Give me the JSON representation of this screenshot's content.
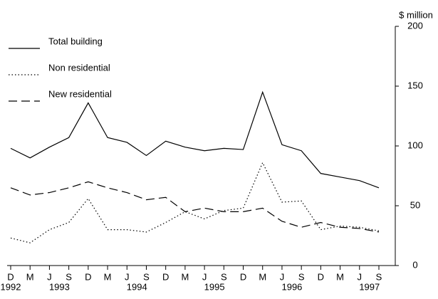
{
  "chart_data": {
    "type": "line",
    "y_axis_label": "$ million",
    "categories": [
      "D",
      "M",
      "J",
      "S",
      "D",
      "M",
      "J",
      "S",
      "D",
      "M",
      "J",
      "S",
      "D",
      "M",
      "J",
      "S",
      "D",
      "M",
      "J",
      "S"
    ],
    "year_labels": [
      "1992",
      null,
      "1993",
      null,
      null,
      null,
      "1994",
      null,
      null,
      null,
      "1995",
      null,
      null,
      null,
      "1996",
      null,
      null,
      null,
      "1997",
      null
    ],
    "series": [
      {
        "name": "Total building",
        "color": "#000000",
        "dash": "solid",
        "values": [
          98,
          90,
          99,
          107,
          136,
          107,
          103,
          92,
          104,
          99,
          96,
          98,
          97,
          145,
          101,
          96,
          77,
          74,
          71,
          65
        ]
      },
      {
        "name": "Non residential",
        "color": "#000000",
        "dash": "dotted",
        "values": [
          23,
          19,
          30,
          36,
          56,
          30,
          30,
          28,
          36,
          45,
          39,
          46,
          48,
          86,
          53,
          54,
          30,
          33,
          32,
          29
        ]
      },
      {
        "name": "New residential",
        "color": "#000000",
        "dash": "dashed",
        "values": [
          65,
          59,
          61,
          65,
          70,
          65,
          61,
          55,
          57,
          45,
          48,
          45,
          45,
          48,
          37,
          32,
          36,
          32,
          31,
          28
        ]
      }
    ],
    "ylim": [
      0,
      200
    ],
    "yticks": [
      0,
      50,
      100,
      150,
      200
    ],
    "y_axis_side": "right",
    "grid": false
  }
}
